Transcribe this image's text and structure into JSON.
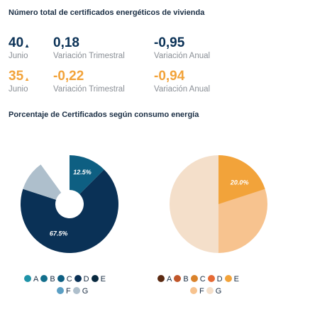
{
  "header": {
    "title": "Número total de certificados energéticos de vivienda"
  },
  "stats": [
    {
      "value": "40",
      "arrow": "▲",
      "label": "Junio",
      "color": "#0a3156"
    },
    {
      "value": "0,18",
      "label": "Variación Trimestral",
      "color": "#0a3156"
    },
    {
      "value": "-0,95",
      "label": "Variación Anual",
      "color": "#0a3156"
    },
    {
      "value": "35",
      "arrow": "▲",
      "label": "Junio",
      "color": "#f2a33a"
    },
    {
      "value": "-0,22",
      "label": "Variación Trimestral",
      "color": "#f2a33a"
    },
    {
      "value": "-0,94",
      "label": "Variación Anual",
      "color": "#f2a33a"
    }
  ],
  "section2": {
    "title": "Porcentaje de Certificados según consumo energía"
  },
  "chart_data": [
    {
      "type": "pie",
      "categories": [
        "A",
        "B",
        "C",
        "D",
        "E",
        "F",
        "G"
      ],
      "values": [
        0,
        0,
        12.5,
        67.5,
        0,
        0,
        10.0
      ],
      "value_labels": [
        "",
        "",
        "12.5%",
        "67.5%",
        "",
        "",
        "10.0%"
      ],
      "colors": [
        "#1f93a8",
        "#136f8c",
        "#0e5f82",
        "#0a3156",
        "#09293f",
        "#5b9fc4",
        "#aebfcc"
      ],
      "legend_position": "bottom"
    },
    {
      "type": "pie",
      "categories": [
        "A",
        "B",
        "C",
        "D",
        "E",
        "F",
        "G"
      ],
      "values": [
        0,
        0,
        0,
        0,
        20.0,
        0,
        0
      ],
      "value_labels": [
        "",
        "",
        "",
        "",
        "20.0%",
        "",
        ""
      ],
      "colors": [
        "#5b2a12",
        "#c0562a",
        "#d9822b",
        "#e66a35",
        "#f2a33a",
        "#f7c38f",
        "#f4dfca"
      ],
      "legend_position": "bottom"
    }
  ]
}
